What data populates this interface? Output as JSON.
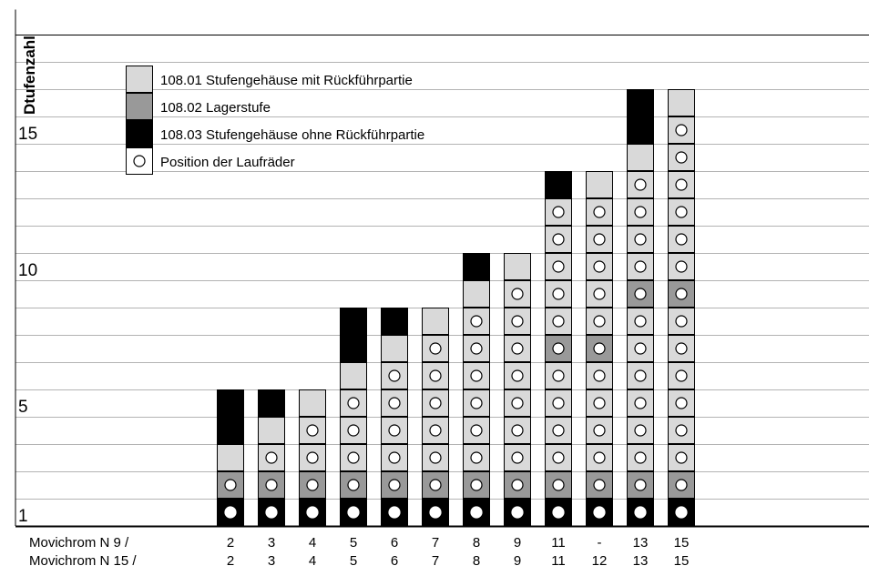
{
  "y_axis": {
    "title": "Dtufenzahl",
    "tick_labels": [
      {
        "label": "1",
        "level": 1
      },
      {
        "label": "5",
        "level": 5
      },
      {
        "label": "10",
        "level": 10
      },
      {
        "label": "15",
        "level": 15
      }
    ],
    "gridlines": true,
    "max_level": 18
  },
  "legend": {
    "position": "top-left",
    "items": [
      {
        "key": "gehaeuse_mit",
        "color": "#d9d9d9",
        "label": "108.01 Stufengehäuse mit Rückführpartie"
      },
      {
        "key": "lager",
        "color": "#999999",
        "label": "108.02 Lagerstufe"
      },
      {
        "key": "gehaeuse_ohne",
        "color": "#000000",
        "label": "108.03 Stufengehäuse ohne Rückführpartie"
      },
      {
        "key": "laufrad",
        "color": "#ffffff",
        "label": "Position der Laufräder"
      }
    ]
  },
  "row_labels": [
    "Movichrom N 9 /",
    "Movichrom N 15 /"
  ],
  "chart_data": {
    "type": "stacked-block",
    "ylabel": "Dtufenzahl",
    "legend_placement": "top-left",
    "codes": {
      "B": "108.03 Stufengehäuse ohne Rückführpartie",
      "G": "108.02 Lagerstufe",
      "L": "108.01 Stufengehäuse mit Rückführpartie",
      "O": "Position der Laufräder"
    },
    "columns": [
      {
        "n9": "2",
        "n15": "2",
        "cells": [
          {
            "fill": "B",
            "rad": true
          },
          {
            "fill": "G",
            "rad": true
          },
          {
            "fill": "L",
            "rad": false
          },
          {
            "fill": "B",
            "rad": false
          },
          {
            "fill": "B",
            "rad": false
          }
        ]
      },
      {
        "n9": "3",
        "n15": "3",
        "cells": [
          {
            "fill": "B",
            "rad": true
          },
          {
            "fill": "G",
            "rad": true
          },
          {
            "fill": "L",
            "rad": true
          },
          {
            "fill": "L",
            "rad": false
          },
          {
            "fill": "B",
            "rad": false
          }
        ]
      },
      {
        "n9": "4",
        "n15": "4",
        "cells": [
          {
            "fill": "B",
            "rad": true
          },
          {
            "fill": "G",
            "rad": true
          },
          {
            "fill": "L",
            "rad": true
          },
          {
            "fill": "L",
            "rad": true
          },
          {
            "fill": "L",
            "rad": false
          }
        ]
      },
      {
        "n9": "5",
        "n15": "5",
        "cells": [
          {
            "fill": "B",
            "rad": true
          },
          {
            "fill": "G",
            "rad": true
          },
          {
            "fill": "L",
            "rad": true
          },
          {
            "fill": "L",
            "rad": true
          },
          {
            "fill": "L",
            "rad": true
          },
          {
            "fill": "L",
            "rad": false
          },
          {
            "fill": "B",
            "rad": false
          },
          {
            "fill": "B",
            "rad": false
          }
        ]
      },
      {
        "n9": "6",
        "n15": "6",
        "cells": [
          {
            "fill": "B",
            "rad": true
          },
          {
            "fill": "G",
            "rad": true
          },
          {
            "fill": "L",
            "rad": true
          },
          {
            "fill": "L",
            "rad": true
          },
          {
            "fill": "L",
            "rad": true
          },
          {
            "fill": "L",
            "rad": true
          },
          {
            "fill": "L",
            "rad": false
          },
          {
            "fill": "B",
            "rad": false
          }
        ]
      },
      {
        "n9": "7",
        "n15": "7",
        "cells": [
          {
            "fill": "B",
            "rad": true
          },
          {
            "fill": "G",
            "rad": true
          },
          {
            "fill": "L",
            "rad": true
          },
          {
            "fill": "L",
            "rad": true
          },
          {
            "fill": "L",
            "rad": true
          },
          {
            "fill": "L",
            "rad": true
          },
          {
            "fill": "L",
            "rad": true
          },
          {
            "fill": "L",
            "rad": false
          }
        ]
      },
      {
        "n9": "8",
        "n15": "8",
        "cells": [
          {
            "fill": "B",
            "rad": true
          },
          {
            "fill": "G",
            "rad": true
          },
          {
            "fill": "L",
            "rad": true
          },
          {
            "fill": "L",
            "rad": true
          },
          {
            "fill": "L",
            "rad": true
          },
          {
            "fill": "L",
            "rad": true
          },
          {
            "fill": "L",
            "rad": true
          },
          {
            "fill": "L",
            "rad": true
          },
          {
            "fill": "L",
            "rad": false
          },
          {
            "fill": "B",
            "rad": false
          }
        ]
      },
      {
        "n9": "9",
        "n15": "9",
        "cells": [
          {
            "fill": "B",
            "rad": true
          },
          {
            "fill": "G",
            "rad": true
          },
          {
            "fill": "L",
            "rad": true
          },
          {
            "fill": "L",
            "rad": true
          },
          {
            "fill": "L",
            "rad": true
          },
          {
            "fill": "L",
            "rad": true
          },
          {
            "fill": "L",
            "rad": true
          },
          {
            "fill": "L",
            "rad": true
          },
          {
            "fill": "L",
            "rad": true
          },
          {
            "fill": "L",
            "rad": false
          }
        ]
      },
      {
        "n9": "11",
        "n15": "11",
        "cells": [
          {
            "fill": "B",
            "rad": true
          },
          {
            "fill": "G",
            "rad": true
          },
          {
            "fill": "L",
            "rad": true
          },
          {
            "fill": "L",
            "rad": true
          },
          {
            "fill": "L",
            "rad": true
          },
          {
            "fill": "L",
            "rad": true
          },
          {
            "fill": "G",
            "rad": true
          },
          {
            "fill": "L",
            "rad": true
          },
          {
            "fill": "L",
            "rad": true
          },
          {
            "fill": "L",
            "rad": true
          },
          {
            "fill": "L",
            "rad": true
          },
          {
            "fill": "L",
            "rad": true
          },
          {
            "fill": "B",
            "rad": false
          }
        ]
      },
      {
        "n9": "-",
        "n15": "12",
        "cells": [
          {
            "fill": "B",
            "rad": true
          },
          {
            "fill": "G",
            "rad": true
          },
          {
            "fill": "L",
            "rad": true
          },
          {
            "fill": "L",
            "rad": true
          },
          {
            "fill": "L",
            "rad": true
          },
          {
            "fill": "L",
            "rad": true
          },
          {
            "fill": "G",
            "rad": true
          },
          {
            "fill": "L",
            "rad": true
          },
          {
            "fill": "L",
            "rad": true
          },
          {
            "fill": "L",
            "rad": true
          },
          {
            "fill": "L",
            "rad": true
          },
          {
            "fill": "L",
            "rad": true
          },
          {
            "fill": "L",
            "rad": false
          }
        ]
      },
      {
        "n9": "13",
        "n15": "13",
        "cells": [
          {
            "fill": "B",
            "rad": true
          },
          {
            "fill": "G",
            "rad": true
          },
          {
            "fill": "L",
            "rad": true
          },
          {
            "fill": "L",
            "rad": true
          },
          {
            "fill": "L",
            "rad": true
          },
          {
            "fill": "L",
            "rad": true
          },
          {
            "fill": "L",
            "rad": true
          },
          {
            "fill": "L",
            "rad": true
          },
          {
            "fill": "G",
            "rad": true
          },
          {
            "fill": "L",
            "rad": true
          },
          {
            "fill": "L",
            "rad": true
          },
          {
            "fill": "L",
            "rad": true
          },
          {
            "fill": "L",
            "rad": true
          },
          {
            "fill": "L",
            "rad": false
          },
          {
            "fill": "B",
            "rad": false
          },
          {
            "fill": "B",
            "rad": false
          }
        ]
      },
      {
        "n9": "15",
        "n15": "15",
        "cells": [
          {
            "fill": "B",
            "rad": true
          },
          {
            "fill": "G",
            "rad": true
          },
          {
            "fill": "L",
            "rad": true
          },
          {
            "fill": "L",
            "rad": true
          },
          {
            "fill": "L",
            "rad": true
          },
          {
            "fill": "L",
            "rad": true
          },
          {
            "fill": "L",
            "rad": true
          },
          {
            "fill": "L",
            "rad": true
          },
          {
            "fill": "G",
            "rad": true
          },
          {
            "fill": "L",
            "rad": true
          },
          {
            "fill": "L",
            "rad": true
          },
          {
            "fill": "L",
            "rad": true
          },
          {
            "fill": "L",
            "rad": true
          },
          {
            "fill": "L",
            "rad": true
          },
          {
            "fill": "L",
            "rad": true
          },
          {
            "fill": "L",
            "rad": false
          }
        ]
      }
    ]
  },
  "colors": {
    "B": "#000000",
    "G": "#999999",
    "L": "#d9d9d9",
    "O": "#ffffff",
    "grid": "#b3b3b3"
  }
}
